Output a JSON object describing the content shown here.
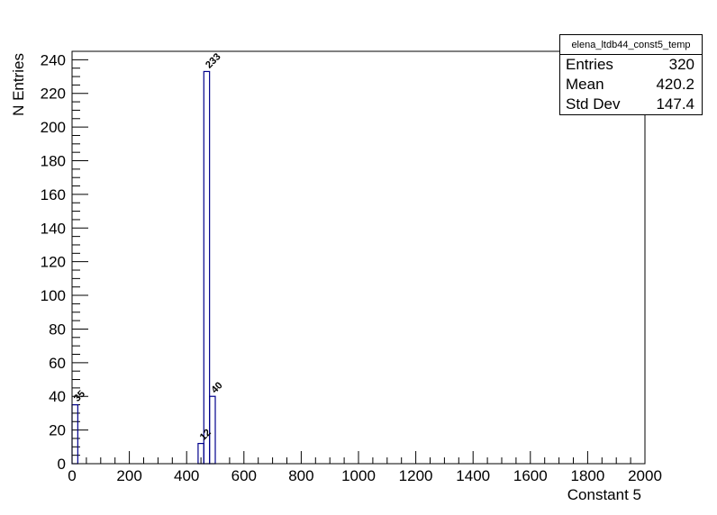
{
  "chart_data": {
    "type": "histogram",
    "title": "",
    "xlabel": "Constant 5",
    "ylabel": "N Entries",
    "xlim": [
      0,
      2000
    ],
    "ylim": [
      0,
      245
    ],
    "x_ticks": [
      0,
      200,
      400,
      600,
      800,
      1000,
      1200,
      1400,
      1600,
      1800,
      2000
    ],
    "y_ticks": [
      0,
      20,
      40,
      60,
      80,
      100,
      120,
      140,
      160,
      180,
      200,
      220,
      240
    ],
    "bin_width": 20,
    "bins": [
      {
        "x0": 0,
        "x1": 20,
        "value": 35,
        "label": "35"
      },
      {
        "x0": 440,
        "x1": 460,
        "value": 12,
        "label": "12"
      },
      {
        "x0": 460,
        "x1": 480,
        "value": 233,
        "label": "233"
      },
      {
        "x0": 480,
        "x1": 500,
        "value": 40,
        "label": "40"
      }
    ],
    "line_color": "#00008b",
    "grid": false
  },
  "stats": {
    "name": "elena_ltdb44_const5_temp",
    "rows": [
      {
        "label": "Entries",
        "value": "320"
      },
      {
        "label": "Mean",
        "value": "420.2"
      },
      {
        "label": "Std Dev",
        "value": "147.4"
      }
    ]
  }
}
